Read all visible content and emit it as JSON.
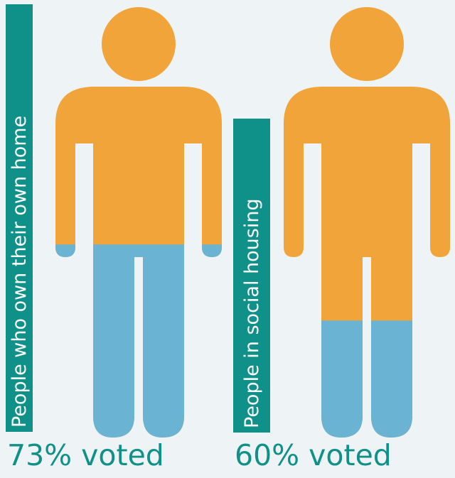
{
  "colors": {
    "background": "#eef4f5",
    "voted": "#6ab3d3",
    "not_voted": "#f0a43a",
    "label_box": "#0f9088",
    "label_text": "#ffffff",
    "percent_text": "#0f9088"
  },
  "chart_data": {
    "type": "pictogram",
    "categories": [
      "People who own their own home",
      "People in social housing"
    ],
    "series": [
      {
        "values": [
          73,
          60
        ]
      }
    ],
    "annotations": [
      "73% voted",
      "60% voted"
    ],
    "unit": "%",
    "ylim": [
      0,
      100
    ],
    "icon": "person-icon"
  }
}
